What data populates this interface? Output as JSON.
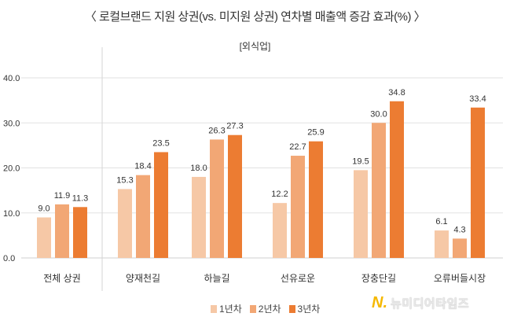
{
  "chart_data": {
    "type": "bar",
    "title": "〈 로컬브랜드 지원 상권(vs. 미지원 상권) 연차별 매출액 증감 효과(%) 〉",
    "subtitle": "[외식업]",
    "categories": [
      "전체 상권",
      "양재천길",
      "하늘길",
      "선유로운",
      "장충단길",
      "오류버들시장"
    ],
    "series": [
      {
        "name": "1년차",
        "values": [
          9.0,
          15.3,
          18.0,
          12.2,
          19.5,
          6.1
        ],
        "color": "#f6c8a6"
      },
      {
        "name": "2년차",
        "values": [
          11.9,
          18.4,
          26.3,
          22.7,
          30.0,
          4.3
        ],
        "color": "#f2a775"
      },
      {
        "name": "3년차",
        "values": [
          11.3,
          23.5,
          27.3,
          25.9,
          34.8,
          33.4
        ],
        "color": "#ec7c32"
      }
    ],
    "ylim": [
      0,
      40
    ],
    "yticks": [
      "0.0",
      "10.0",
      "20.0",
      "30.0",
      "40.0"
    ],
    "grid": true,
    "legend_position": "bottom"
  },
  "watermark": {
    "text": "뉴미디어타임즈"
  }
}
